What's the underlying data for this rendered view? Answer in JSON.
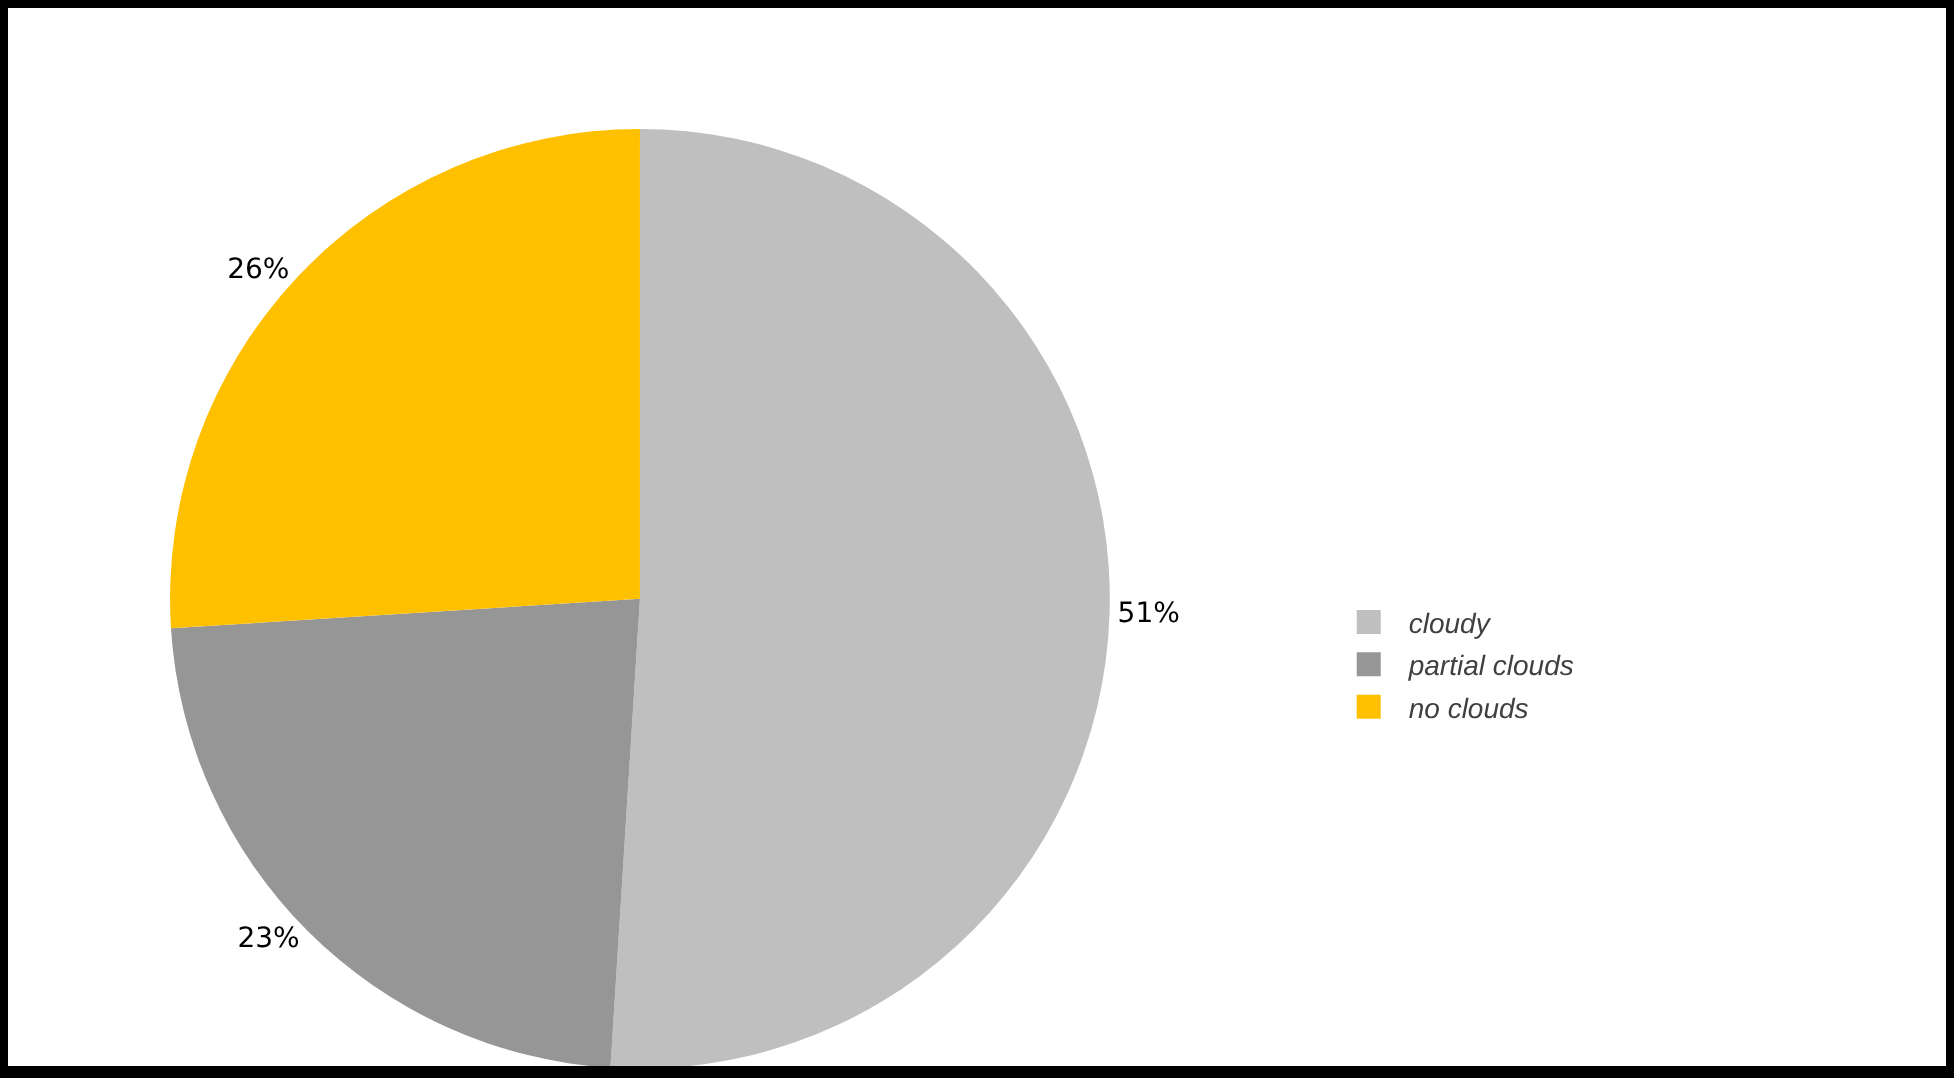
{
  "chart_data": {
    "type": "pie",
    "categories": [
      "cloudy",
      "partial clouds",
      "no clouds"
    ],
    "values": [
      51,
      23,
      26
    ],
    "colors": [
      "#bfbfbf",
      "#969696",
      "#ffc000"
    ],
    "value_labels": [
      "51%",
      "23%",
      "26%"
    ],
    "legend": "right"
  }
}
